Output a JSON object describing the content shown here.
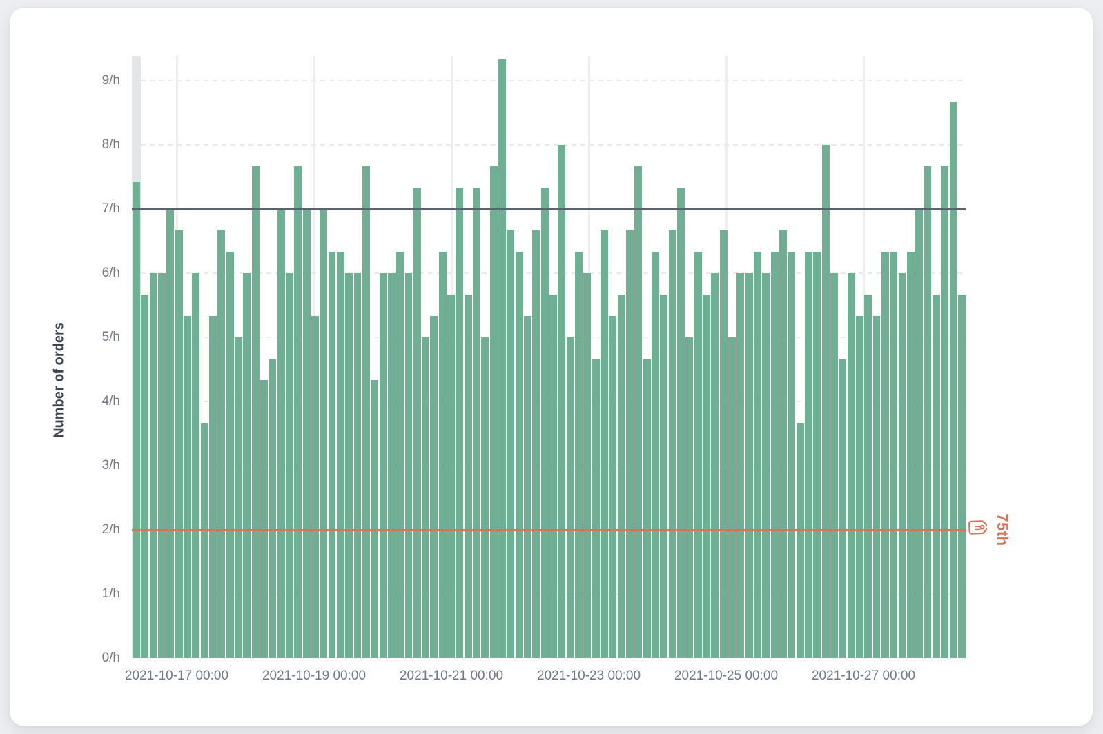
{
  "chart_data": {
    "type": "bar",
    "title": "",
    "xlabel": "",
    "ylabel": "Number of orders",
    "unit_suffix": "/h",
    "ylim": [
      0,
      9.39
    ],
    "grid": "horizontal dashed lines at each 1/h; light vertical lines at each labeled date",
    "legend_position": "none",
    "bar_color": "#6fb095",
    "highlighted_bin_index": 0,
    "y_ticks": [
      "0/h",
      "1/h",
      "2/h",
      "3/h",
      "4/h",
      "5/h",
      "6/h",
      "7/h",
      "8/h",
      "9/h"
    ],
    "x_ticks": [
      "2021-10-17 00:00",
      "2021-10-19 00:00",
      "2021-10-21 00:00",
      "2021-10-23 00:00",
      "2021-10-25 00:00",
      "2021-10-27 00:00"
    ],
    "reference_lines": [
      {
        "value": 7,
        "color": "#5a6272",
        "label": ""
      },
      {
        "value": 2,
        "color": "#dd7156",
        "label": "75th",
        "icon": "tag-icon"
      }
    ],
    "values": [
      7.42,
      5.67,
      6,
      6,
      7,
      6.67,
      5.33,
      6,
      3.67,
      5.33,
      6.67,
      6.33,
      5,
      6,
      7.67,
      4.33,
      4.67,
      7,
      6,
      7.67,
      7,
      5.33,
      7,
      6.33,
      6.33,
      6,
      6,
      7.67,
      4.33,
      6,
      6,
      6.33,
      6,
      7.33,
      5,
      5.33,
      6.33,
      5.67,
      7.33,
      5.67,
      7.33,
      5,
      7.67,
      9.33,
      6.67,
      6.33,
      5.33,
      6.67,
      7.33,
      5.67,
      8,
      5,
      6.33,
      6,
      4.67,
      6.67,
      5.33,
      5.67,
      6.67,
      7.67,
      4.67,
      6.33,
      5.67,
      6.67,
      7.33,
      5,
      6.33,
      5.67,
      6,
      6.67,
      5,
      6,
      6,
      6.33,
      6,
      6.33,
      6.67,
      6.33,
      3.67,
      6.33,
      6.33,
      8,
      6,
      4.67,
      6,
      5.33,
      5.67,
      5.33,
      6.33,
      6.33,
      6,
      6.33,
      7,
      7.67,
      5.67,
      7.67,
      8.67,
      5.67
    ],
    "colors": {
      "bar": "#6fb095",
      "highlight_band": "#e3e5e9",
      "h_grid": "#e8eaef",
      "v_grid": "#eceef3",
      "axis_text": "#6e7889",
      "axis_title_text": "#3b4252",
      "upper_ref_line": "#5a6272",
      "lower_ref_line": "#dd7156"
    }
  }
}
